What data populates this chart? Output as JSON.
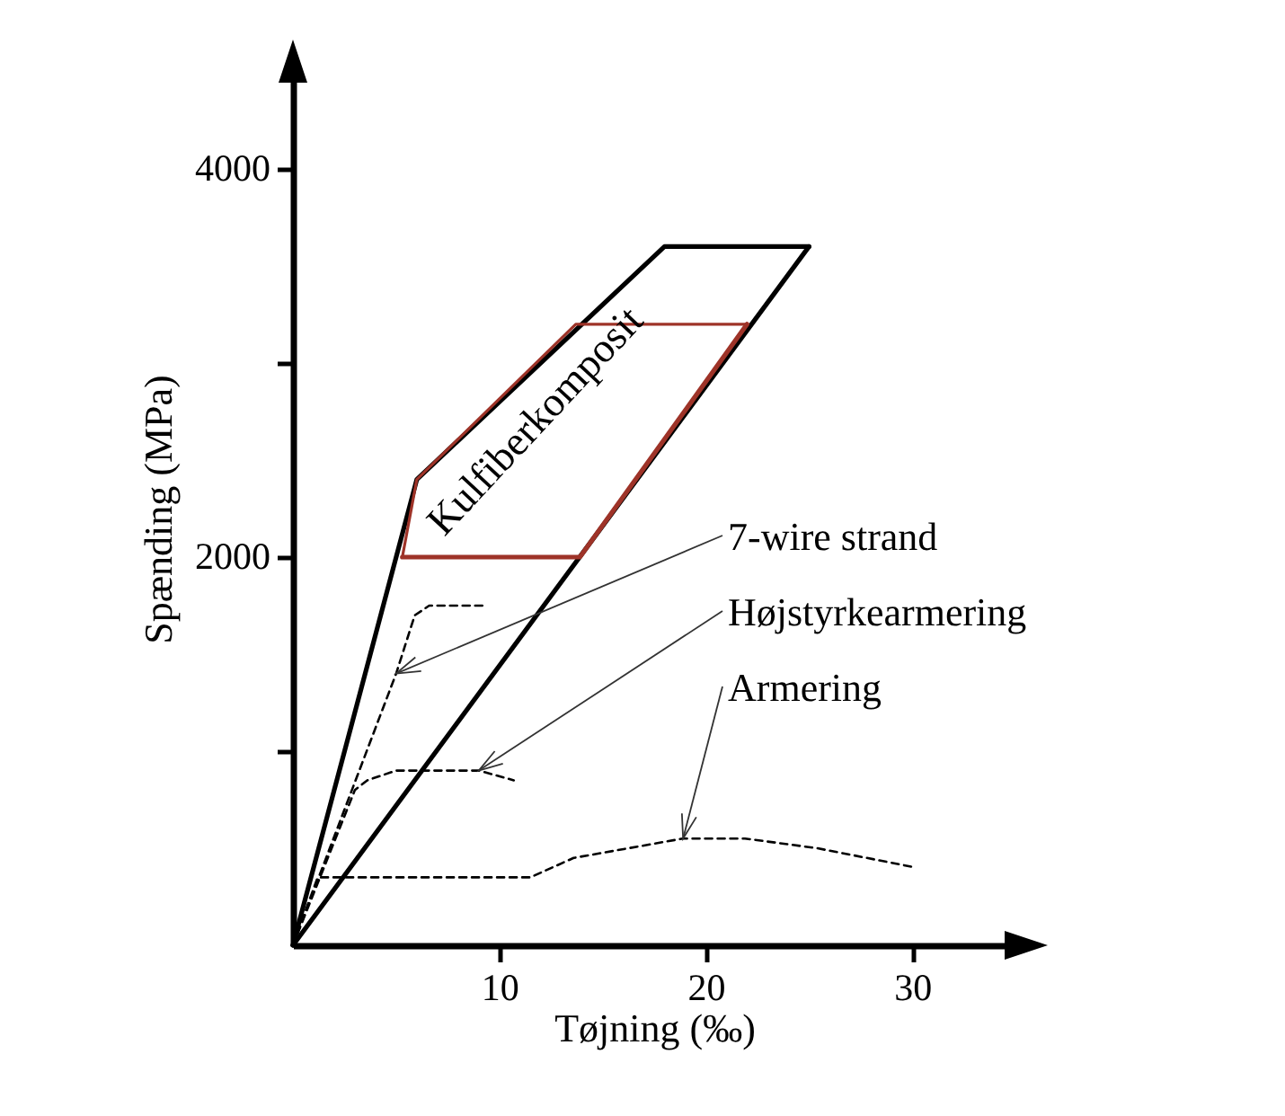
{
  "chart_data": {
    "type": "line",
    "xlabel": "Tøjning (‰)",
    "ylabel": "Spænding (MPa)",
    "xlim": [
      0,
      35
    ],
    "ylim": [
      0,
      4500
    ],
    "xticks": [
      10,
      20,
      30
    ],
    "yticks": [
      {
        "value": 1000,
        "label": null
      },
      2000,
      {
        "value": 3000,
        "label": null
      },
      4000
    ],
    "grid": false,
    "series": [
      {
        "color": "#000000",
        "line_style": "solid",
        "x": [
          0,
          6,
          18,
          25
        ],
        "values": [
          0,
          2400,
          3600,
          3600
        ]
      },
      {
        "color": "#000000",
        "line_style": "solid",
        "x": [
          0,
          25
        ],
        "values": [
          0,
          3600
        ]
      },
      {
        "name": "Kulfiberkomposit",
        "color": "#9e3328",
        "line_style": "solid",
        "x": [
          5.3,
          6,
          13.7,
          22
        ],
        "values": [
          2000,
          2400,
          3200,
          3200
        ]
      },
      {
        "color": "#9e3328",
        "line_style": "solid",
        "x": [
          5.3,
          13.9,
          22
        ],
        "values": [
          2000,
          2000,
          3200
        ]
      },
      {
        "color": "#000000",
        "line_style": "dashed",
        "x": [
          0,
          5,
          5.9,
          6.6,
          7.5,
          9.3
        ],
        "values": [
          0,
          1400,
          1700,
          1750,
          1750,
          1750
        ]
      },
      {
        "color": "#000000",
        "line_style": "dashed",
        "x": [
          0,
          3,
          3.6,
          5,
          7.4,
          9,
          10.7
        ],
        "values": [
          0,
          800,
          850,
          900,
          900,
          900,
          850
        ]
      },
      {
        "color": "#000000",
        "line_style": "dashed",
        "x": [
          0,
          1.2,
          11.5,
          13.6,
          18.9,
          21.9,
          25.4,
          30.2
        ],
        "values": [
          0,
          350,
          350,
          450,
          550,
          550,
          500,
          400
        ]
      }
    ],
    "annotations": [
      {
        "text": "7-wire strand",
        "x": 5,
        "y": 1400
      },
      {
        "text": "Højstyrkearmering",
        "x": 9,
        "y": 900
      },
      {
        "text": "Armering",
        "x": 18.9,
        "y": 550
      }
    ]
  }
}
